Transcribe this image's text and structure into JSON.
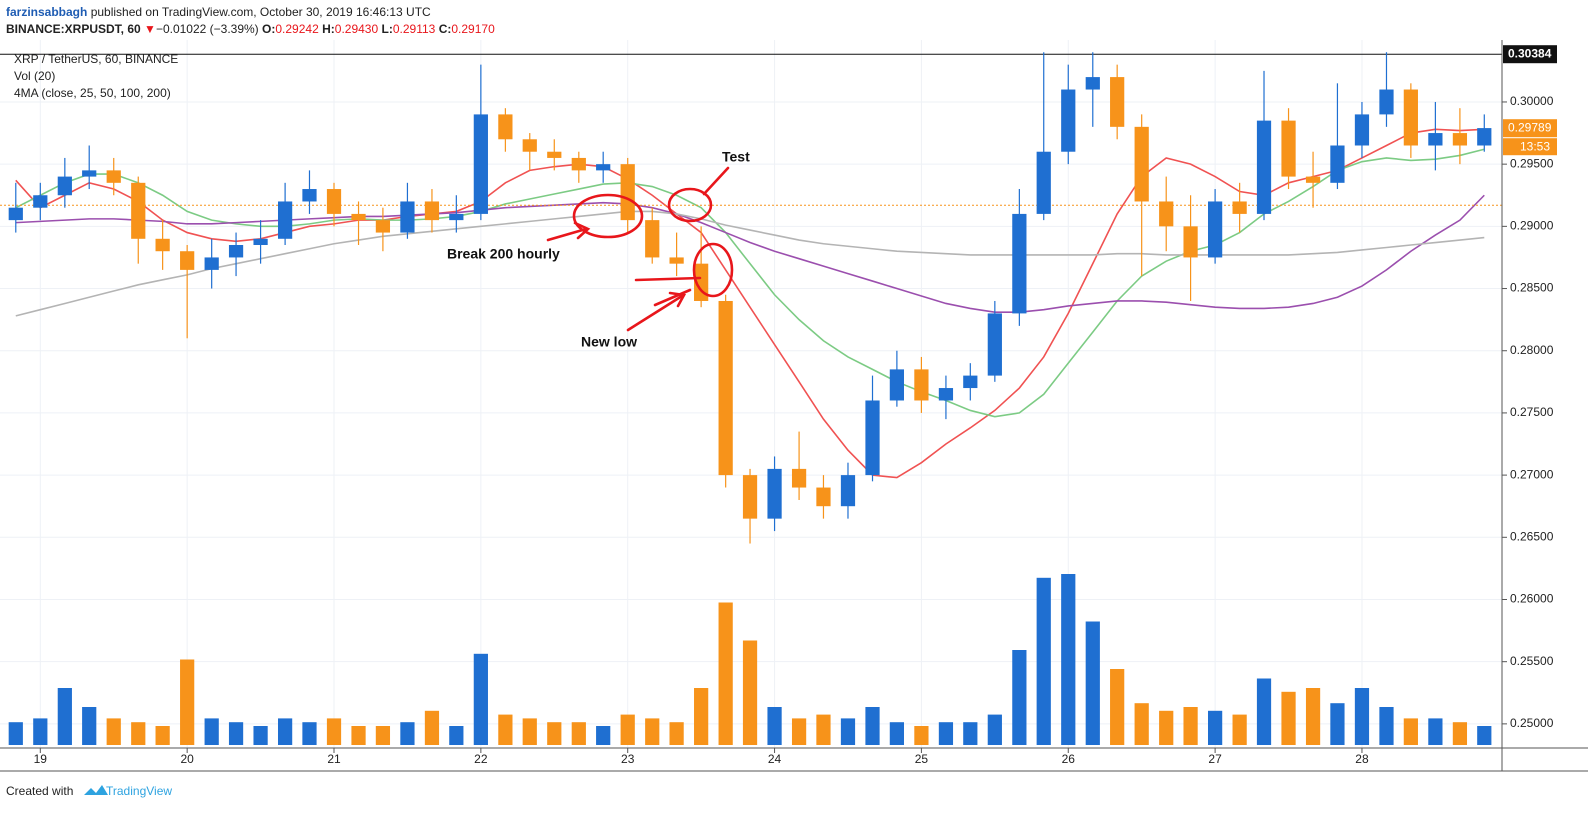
{
  "header": {
    "author": "farzinsabbagh",
    "published": "published on TradingView.com, October 30, 2019 16:46:13 UTC"
  },
  "symbol_line": {
    "symbol": "BINANCE:XRPUSDT, 60",
    "arrow": "▼",
    "change": "−0.01022 (−3.39%)",
    "o_label": "O:",
    "o": "0.29242",
    "h_label": "H:",
    "h": "0.29430",
    "l_label": "L:",
    "l": "0.29113",
    "c_label": "C:",
    "c": "0.29170"
  },
  "footer": {
    "created": "Created with",
    "brand": "TradingView"
  },
  "chart_data": {
    "type": "candlestick",
    "legend": [
      "XRP / TetherUS, 60, BINANCE",
      "Vol (20)"
    ],
    "up_color": "#1f6fd1",
    "down_color": "#f7931a",
    "xlim": [
      18.78,
      28.94
    ],
    "xticks": [
      19,
      20,
      21,
      22,
      23,
      24,
      25,
      26,
      27,
      28
    ],
    "ylim": [
      0.24806,
      0.30458
    ],
    "yticks": [
      {
        "value": 0.25,
        "label": "0.25000"
      },
      {
        "value": 0.255,
        "label": "0.25500"
      },
      {
        "value": 0.26,
        "label": "0.26000"
      },
      {
        "value": 0.265,
        "label": "0.26500"
      },
      {
        "value": 0.27,
        "label": "0.27000"
      },
      {
        "value": 0.275,
        "label": "0.27500"
      },
      {
        "value": 0.28,
        "label": "0.28000"
      },
      {
        "value": 0.285,
        "label": "0.28500"
      },
      {
        "value": 0.29,
        "label": "0.29000"
      },
      {
        "value": 0.295,
        "label": "0.29500"
      },
      {
        "value": 0.3,
        "label": "0.30000"
      }
    ],
    "grid": true,
    "x": [
      18.833,
      19.0,
      19.167,
      19.333,
      19.5,
      19.667,
      19.833,
      20.0,
      20.167,
      20.333,
      20.5,
      20.667,
      20.833,
      21.0,
      21.167,
      21.333,
      21.5,
      21.667,
      21.833,
      22.0,
      22.167,
      22.333,
      22.5,
      22.667,
      22.833,
      23.0,
      23.167,
      23.333,
      23.5,
      23.667,
      23.833,
      24.0,
      24.167,
      24.333,
      24.5,
      24.667,
      24.833,
      25.0,
      25.167,
      25.333,
      25.5,
      25.667,
      25.833,
      26.0,
      26.167,
      26.333,
      26.5,
      26.667,
      26.833,
      27.0,
      27.167,
      27.333,
      27.5,
      27.667,
      27.833,
      28.0,
      28.167,
      28.333,
      28.5,
      28.667,
      28.833
    ],
    "open": [
      0.2905,
      0.2915,
      0.2925,
      0.294,
      0.2945,
      0.2935,
      0.289,
      0.288,
      0.2865,
      0.2875,
      0.2885,
      0.289,
      0.292,
      0.293,
      0.291,
      0.2905,
      0.2895,
      0.292,
      0.2905,
      0.291,
      0.299,
      0.297,
      0.296,
      0.2955,
      0.2945,
      0.295,
      0.2905,
      0.2875,
      0.287,
      0.284,
      0.27,
      0.2665,
      0.2705,
      0.269,
      0.2675,
      0.27,
      0.276,
      0.2785,
      0.276,
      0.277,
      0.278,
      0.283,
      0.291,
      0.296,
      0.301,
      0.302,
      0.298,
      0.292,
      0.29,
      0.2875,
      0.292,
      0.291,
      0.2985,
      0.294,
      0.2935,
      0.2965,
      0.299,
      0.301,
      0.2965,
      0.2975,
      0.2965
    ],
    "high": [
      0.2935,
      0.2935,
      0.2955,
      0.2965,
      0.2955,
      0.294,
      0.2905,
      0.2885,
      0.289,
      0.2895,
      0.2905,
      0.2935,
      0.2945,
      0.2935,
      0.292,
      0.2915,
      0.2935,
      0.293,
      0.2925,
      0.303,
      0.2995,
      0.2975,
      0.297,
      0.296,
      0.296,
      0.2955,
      0.2915,
      0.2895,
      0.29,
      0.2845,
      0.2705,
      0.2715,
      0.2735,
      0.27,
      0.271,
      0.278,
      0.28,
      0.2795,
      0.278,
      0.279,
      0.284,
      0.293,
      0.304,
      0.303,
      0.304,
      0.303,
      0.299,
      0.294,
      0.2925,
      0.293,
      0.2935,
      0.3025,
      0.2995,
      0.296,
      0.3015,
      0.3,
      0.304,
      0.3015,
      0.3,
      0.2995,
      0.299
    ],
    "low": [
      0.2895,
      0.2905,
      0.2915,
      0.293,
      0.2925,
      0.287,
      0.2865,
      0.281,
      0.285,
      0.286,
      0.287,
      0.2885,
      0.291,
      0.29,
      0.2885,
      0.288,
      0.289,
      0.2895,
      0.2895,
      0.2905,
      0.296,
      0.2945,
      0.2945,
      0.2935,
      0.2935,
      0.2895,
      0.287,
      0.286,
      0.2835,
      0.269,
      0.2645,
      0.2655,
      0.268,
      0.2665,
      0.2665,
      0.2695,
      0.2755,
      0.275,
      0.2745,
      0.276,
      0.2775,
      0.282,
      0.2905,
      0.295,
      0.298,
      0.297,
      0.286,
      0.288,
      0.284,
      0.287,
      0.2895,
      0.2905,
      0.293,
      0.2915,
      0.293,
      0.2955,
      0.298,
      0.2955,
      0.2945,
      0.295,
      0.296
    ],
    "close": [
      0.2915,
      0.2925,
      0.294,
      0.2945,
      0.2935,
      0.289,
      0.288,
      0.2865,
      0.2875,
      0.2885,
      0.289,
      0.292,
      0.293,
      0.291,
      0.2905,
      0.2895,
      0.292,
      0.2905,
      0.291,
      0.299,
      0.297,
      0.296,
      0.2955,
      0.2945,
      0.295,
      0.2905,
      0.2875,
      0.287,
      0.284,
      0.27,
      0.2665,
      0.2705,
      0.269,
      0.2675,
      0.27,
      0.276,
      0.2785,
      0.276,
      0.277,
      0.278,
      0.283,
      0.291,
      0.296,
      0.301,
      0.302,
      0.298,
      0.292,
      0.29,
      0.2875,
      0.292,
      0.291,
      0.2985,
      0.294,
      0.2935,
      0.2965,
      0.299,
      0.301,
      0.2965,
      0.2975,
      0.2965,
      0.2979
    ],
    "volume": [
      12,
      14,
      30,
      20,
      14,
      12,
      10,
      45,
      14,
      12,
      10,
      14,
      12,
      14,
      10,
      10,
      12,
      18,
      10,
      48,
      16,
      14,
      12,
      12,
      10,
      16,
      14,
      12,
      30,
      75,
      55,
      20,
      14,
      16,
      14,
      20,
      12,
      10,
      12,
      12,
      16,
      50,
      88,
      90,
      65,
      40,
      22,
      18,
      20,
      18,
      16,
      35,
      28,
      30,
      22,
      30,
      20,
      14,
      14,
      12,
      10
    ],
    "moving_averages": {
      "label": "4MA (close, 25, 50, 100, 200)",
      "lines": [
        {
          "color": "#f05252",
          "values": [
            0.2937,
            0.2915,
            0.2925,
            0.2935,
            0.293,
            0.292,
            0.2905,
            0.2895,
            0.289,
            0.2888,
            0.289,
            0.2895,
            0.29,
            0.2902,
            0.2905,
            0.2905,
            0.2908,
            0.291,
            0.2912,
            0.292,
            0.2935,
            0.2945,
            0.2948,
            0.295,
            0.2948,
            0.2938,
            0.2925,
            0.291,
            0.2895,
            0.2865,
            0.2835,
            0.2805,
            0.2775,
            0.2745,
            0.272,
            0.27,
            0.2698,
            0.271,
            0.2725,
            0.2738,
            0.2752,
            0.277,
            0.2795,
            0.283,
            0.287,
            0.291,
            0.294,
            0.2955,
            0.295,
            0.294,
            0.2928,
            0.2925,
            0.2935,
            0.294,
            0.2945,
            0.2955,
            0.2965,
            0.2975,
            0.2978,
            0.2977,
            0.2978
          ]
        },
        {
          "color": "#7ccb84",
          "values": [
            0.2915,
            0.2925,
            0.2935,
            0.2942,
            0.2942,
            0.2935,
            0.2925,
            0.2912,
            0.2905,
            0.2902,
            0.29,
            0.29,
            0.2902,
            0.2905,
            0.2906,
            0.2905,
            0.2905,
            0.2906,
            0.2908,
            0.2912,
            0.2918,
            0.2922,
            0.2926,
            0.293,
            0.2934,
            0.2935,
            0.2932,
            0.2925,
            0.2915,
            0.2895,
            0.287,
            0.2845,
            0.2825,
            0.2808,
            0.2795,
            0.2785,
            0.2775,
            0.2767,
            0.276,
            0.2752,
            0.2747,
            0.275,
            0.2765,
            0.279,
            0.2815,
            0.284,
            0.286,
            0.2872,
            0.288,
            0.2885,
            0.2895,
            0.291,
            0.292,
            0.2932,
            0.2945,
            0.2952,
            0.2955,
            0.2953,
            0.2954,
            0.2957,
            0.2962
          ]
        },
        {
          "color": "#9b4fae",
          "values": [
            0.2903,
            0.2904,
            0.2905,
            0.2906,
            0.2906,
            0.2905,
            0.2904,
            0.2902,
            0.2902,
            0.2903,
            0.2904,
            0.2905,
            0.2906,
            0.2907,
            0.2908,
            0.2908,
            0.2909,
            0.291,
            0.2911,
            0.2913,
            0.2915,
            0.2916,
            0.2917,
            0.2918,
            0.2919,
            0.2918,
            0.2915,
            0.291,
            0.2903,
            0.2895,
            0.2887,
            0.288,
            0.2874,
            0.2868,
            0.2862,
            0.2856,
            0.285,
            0.2844,
            0.2838,
            0.2834,
            0.2831,
            0.2831,
            0.2833,
            0.2836,
            0.2838,
            0.284,
            0.284,
            0.2839,
            0.2837,
            0.2835,
            0.2834,
            0.2834,
            0.2835,
            0.2838,
            0.2843,
            0.2852,
            0.2865,
            0.288,
            0.2893,
            0.2905,
            0.2925
          ]
        },
        {
          "color": "#b4b4b4",
          "values": [
            0.2828,
            0.2833,
            0.2838,
            0.2843,
            0.2848,
            0.2853,
            0.2857,
            0.2861,
            0.2866,
            0.287,
            0.2874,
            0.2878,
            0.2882,
            0.2886,
            0.2889,
            0.2892,
            0.2894,
            0.2896,
            0.2898,
            0.29,
            0.2902,
            0.2904,
            0.2906,
            0.2908,
            0.291,
            0.2912,
            0.2912,
            0.291,
            0.2906,
            0.2901,
            0.2897,
            0.2893,
            0.2889,
            0.2886,
            0.2884,
            0.2882,
            0.288,
            0.2879,
            0.2878,
            0.2877,
            0.2877,
            0.2877,
            0.2877,
            0.2877,
            0.2877,
            0.2878,
            0.2878,
            0.2877,
            0.2877,
            0.2877,
            0.2877,
            0.2877,
            0.2877,
            0.2878,
            0.2879,
            0.2881,
            0.2883,
            0.2885,
            0.2887,
            0.2889,
            0.2891
          ]
        }
      ]
    },
    "high_line": {
      "value": 0.30384,
      "label": "0.30384"
    },
    "last_price": {
      "value": 0.29789,
      "label": "0.29789"
    },
    "countdown": "13:53",
    "close_line": 0.2917,
    "annotations": {
      "test": "Test",
      "break": "Break 200 hourly",
      "new_low": "New low"
    }
  }
}
